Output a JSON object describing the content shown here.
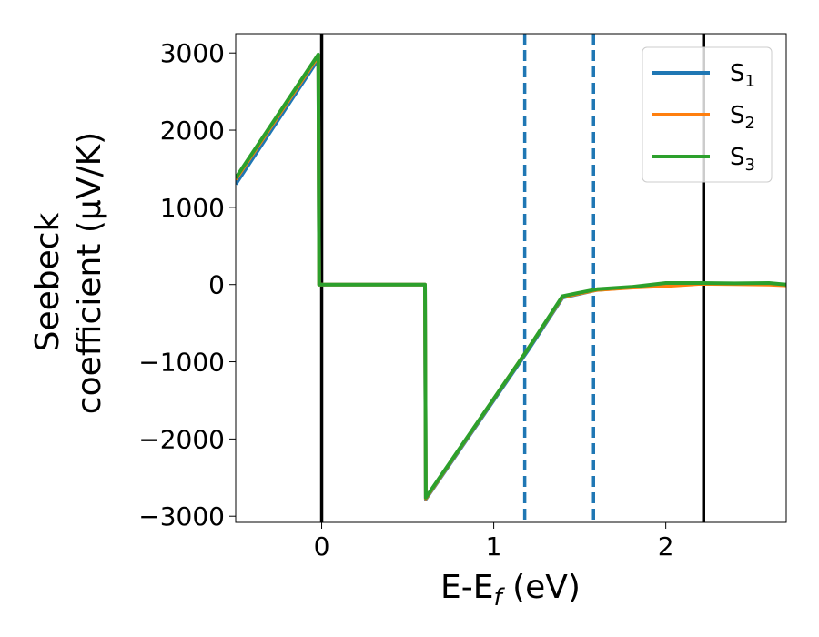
{
  "chart_data": {
    "type": "line",
    "title": "",
    "xlabel": "E-E",
    "xlabel_sub": "f",
    "xlabel_unit": " (eV)",
    "ylabel_line1": "Seebeck",
    "ylabel_line2": "coefficient  (μV/K)",
    "xlim": [
      -0.5,
      2.7
    ],
    "ylim": [
      -3080,
      3250
    ],
    "xticks": [
      0,
      1,
      2
    ],
    "xtick_labels": [
      "0",
      "1",
      "2"
    ],
    "yticks": [
      -3000,
      -2000,
      -1000,
      0,
      1000,
      2000,
      3000
    ],
    "ytick_labels": [
      "−3000",
      "−2000",
      "−1000",
      "0",
      "1000",
      "2000",
      "3000"
    ],
    "grid": false,
    "legend_position": "top-right",
    "vertical_lines": [
      {
        "x": 0.0,
        "style": "solid",
        "color": "#000000"
      },
      {
        "x": 2.22,
        "style": "solid",
        "color": "#000000"
      },
      {
        "x": 1.18,
        "style": "dashed",
        "color": "#1f77b4"
      },
      {
        "x": 1.58,
        "style": "dashed",
        "color": "#1f77b4"
      }
    ],
    "series": [
      {
        "name": "S",
        "subscript": "1",
        "color": "#1f77b4",
        "x": [
          -0.5,
          -0.02,
          -0.015,
          0.6,
          0.605,
          1.2,
          1.4,
          1.6,
          1.8,
          2.0,
          2.2,
          2.4,
          2.6,
          2.7
        ],
        "y": [
          1300,
          2920,
          0,
          0,
          -2780,
          -850,
          -170,
          -70,
          -35,
          -10,
          15,
          10,
          5,
          0
        ]
      },
      {
        "name": "S",
        "subscript": "2",
        "color": "#ff7f0e",
        "x": [
          -0.5,
          -0.02,
          -0.015,
          0.6,
          0.605,
          1.2,
          1.4,
          1.6,
          1.8,
          2.0,
          2.2,
          2.4,
          2.6,
          2.7
        ],
        "y": [
          1360,
          2960,
          0,
          0,
          -2770,
          -830,
          -160,
          -70,
          -40,
          -20,
          10,
          5,
          0,
          -10
        ]
      },
      {
        "name": "S",
        "subscript": "3",
        "color": "#2ca02c",
        "x": [
          -0.5,
          -0.02,
          -0.015,
          0.6,
          0.605,
          1.2,
          1.4,
          1.6,
          1.8,
          2.0,
          2.2,
          2.4,
          2.6,
          2.7
        ],
        "y": [
          1380,
          2980,
          0,
          0,
          -2760,
          -830,
          -150,
          -60,
          -30,
          20,
          20,
          15,
          20,
          0
        ]
      }
    ]
  }
}
